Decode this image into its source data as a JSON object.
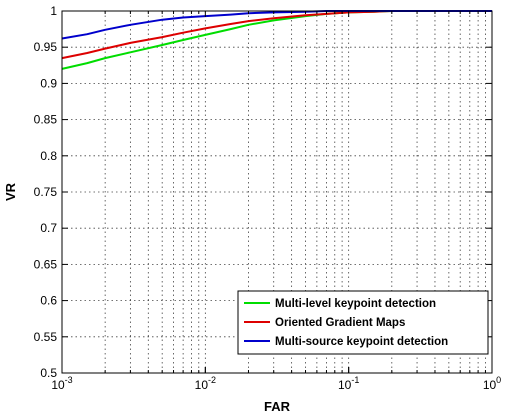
{
  "chart_data": {
    "type": "line",
    "xscale": "log",
    "xlim": [
      0.001,
      1
    ],
    "ylim": [
      0.5,
      1
    ],
    "xlabel": "FAR",
    "ylabel": "VR",
    "grid": true,
    "legend_position": "bottom-right",
    "x_ticks": [
      {
        "value": 0.001,
        "base": "10",
        "exp": "-3"
      },
      {
        "value": 0.01,
        "base": "10",
        "exp": "-2"
      },
      {
        "value": 0.1,
        "base": "10",
        "exp": "-1"
      },
      {
        "value": 1,
        "base": "10",
        "exp": "0"
      }
    ],
    "y_ticks": [
      "0.5",
      "0.55",
      "0.6",
      "0.65",
      "0.7",
      "0.75",
      "0.8",
      "0.85",
      "0.9",
      "0.95",
      "1"
    ],
    "series": [
      {
        "name": "Multi-level keypoint detection",
        "color": "#00dd00",
        "x": [
          0.001,
          0.0015,
          0.002,
          0.003,
          0.005,
          0.007,
          0.01,
          0.015,
          0.02,
          0.03,
          0.05,
          0.07,
          0.1,
          0.15,
          0.2,
          0.3,
          0.5,
          1
        ],
        "y": [
          0.92,
          0.928,
          0.935,
          0.943,
          0.953,
          0.96,
          0.967,
          0.975,
          0.981,
          0.987,
          0.993,
          0.996,
          0.998,
          0.999,
          1.0,
          1.0,
          1.0,
          1.0
        ]
      },
      {
        "name": "Oriented Gradient Maps",
        "color": "#dd0000",
        "x": [
          0.001,
          0.0015,
          0.002,
          0.003,
          0.005,
          0.007,
          0.01,
          0.015,
          0.02,
          0.03,
          0.05,
          0.07,
          0.1,
          0.15,
          0.2,
          0.3,
          0.5,
          1
        ],
        "y": [
          0.935,
          0.942,
          0.948,
          0.956,
          0.964,
          0.97,
          0.976,
          0.982,
          0.986,
          0.99,
          0.994,
          0.996,
          0.998,
          0.999,
          1.0,
          1.0,
          1.0,
          1.0
        ]
      },
      {
        "name": "Multi-source keypoint detection",
        "color": "#0000cc",
        "x": [
          0.001,
          0.0015,
          0.002,
          0.003,
          0.005,
          0.007,
          0.01,
          0.015,
          0.02,
          0.03,
          0.05,
          0.07,
          0.1,
          0.2,
          0.5,
          1
        ],
        "y": [
          0.962,
          0.968,
          0.974,
          0.981,
          0.988,
          0.991,
          0.993,
          0.995,
          0.997,
          0.998,
          0.999,
          1.0,
          1.0,
          1.0,
          1.0,
          1.0
        ]
      }
    ]
  }
}
